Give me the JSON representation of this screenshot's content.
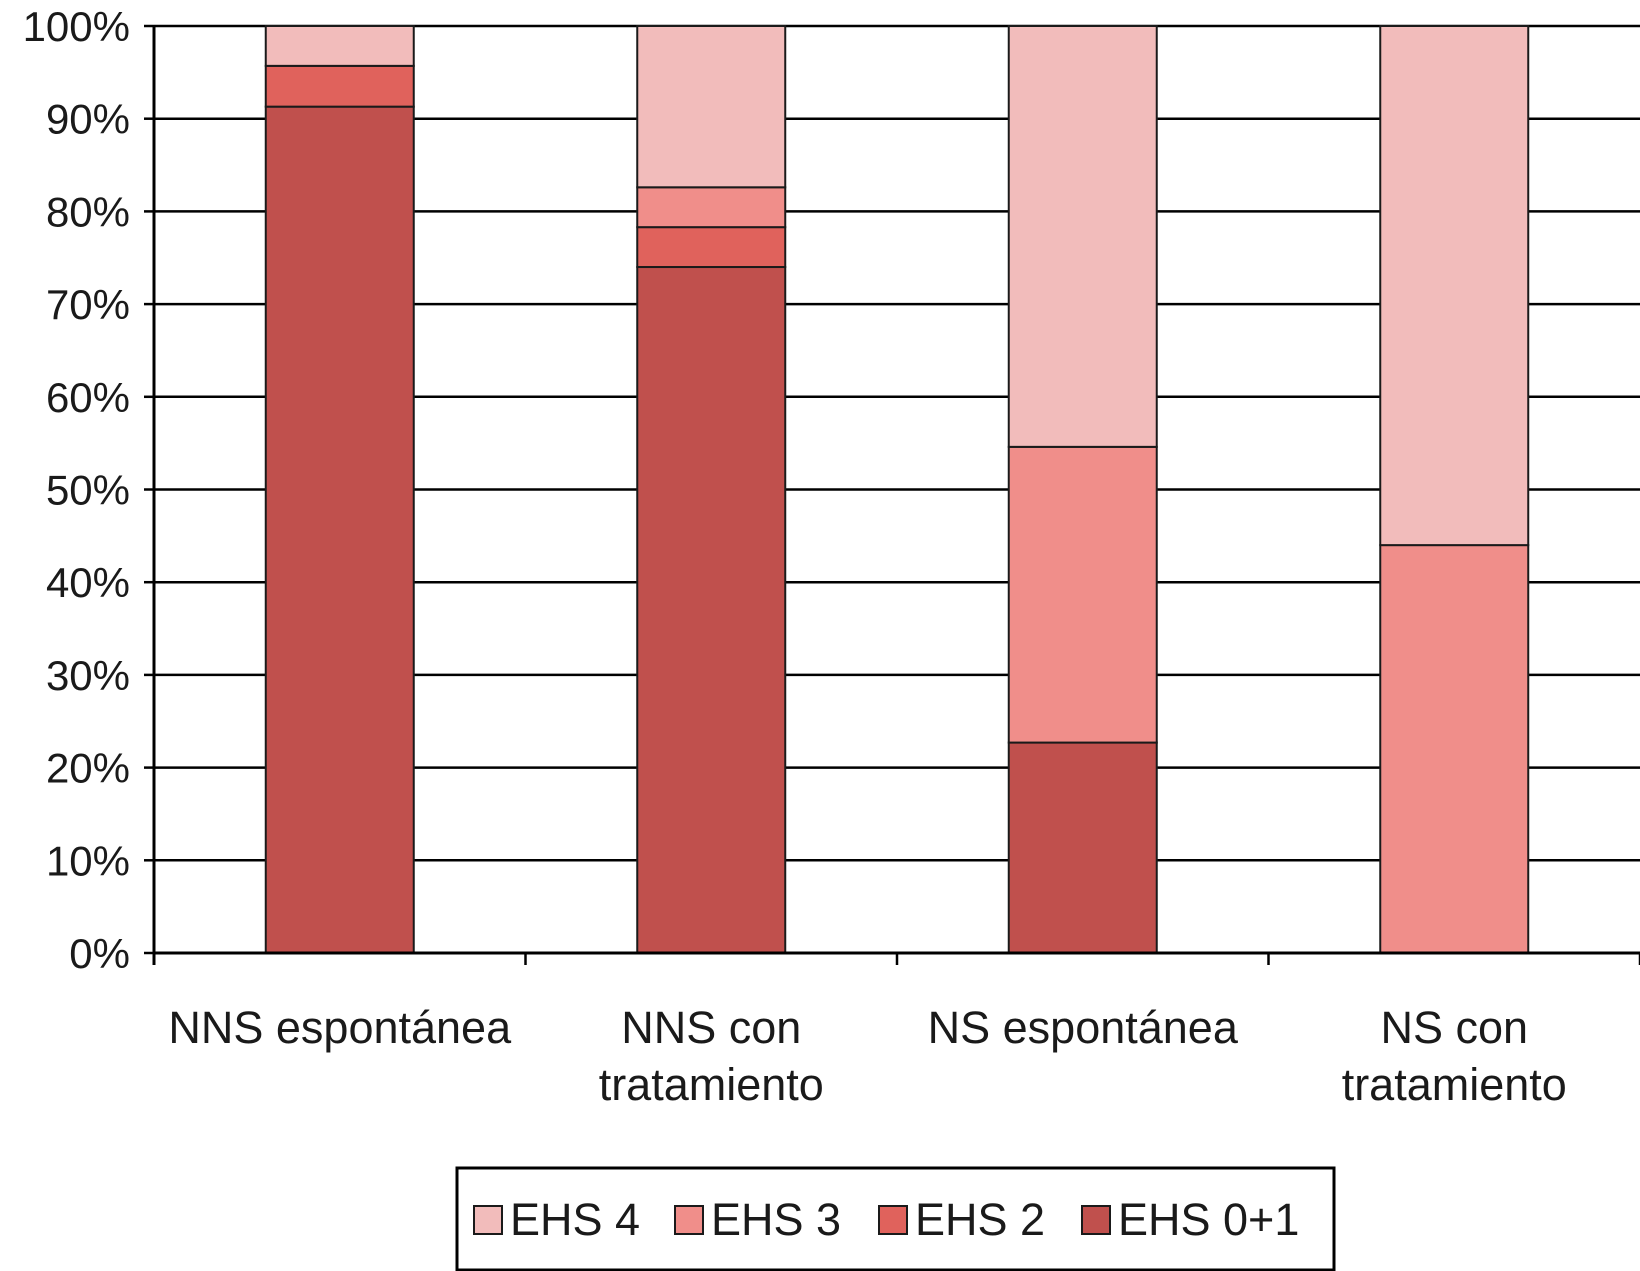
{
  "chart_data": {
    "type": "bar",
    "stacked": true,
    "percent_axis": true,
    "categories": [
      [
        "NNS espontánea"
      ],
      [
        "NNS con",
        "tratamiento"
      ],
      [
        "NS espontánea"
      ],
      [
        "NS con",
        "tratamiento"
      ]
    ],
    "series": [
      {
        "name": "EHS 0+1",
        "color": "#c0504d",
        "values": [
          91.3,
          74.0,
          22.7,
          0
        ]
      },
      {
        "name": "EHS 2",
        "color": "#e0625c",
        "values": [
          4.4,
          4.3,
          0,
          0
        ]
      },
      {
        "name": "EHS 3",
        "color": "#f08e8a",
        "values": [
          0,
          4.3,
          31.9,
          44.0
        ]
      },
      {
        "name": "EHS 4",
        "color": "#f2bcbb",
        "values": [
          4.3,
          17.4,
          45.4,
          56.0
        ]
      }
    ],
    "legend_order": [
      "EHS 4",
      "EHS 3",
      "EHS 2",
      "EHS 0+1"
    ],
    "yticks": [
      "0%",
      "10%",
      "20%",
      "30%",
      "40%",
      "50%",
      "60%",
      "70%",
      "80%",
      "90%",
      "100%"
    ],
    "ylim": [
      0,
      100
    ],
    "grid": true,
    "legend_position": "bottom"
  }
}
